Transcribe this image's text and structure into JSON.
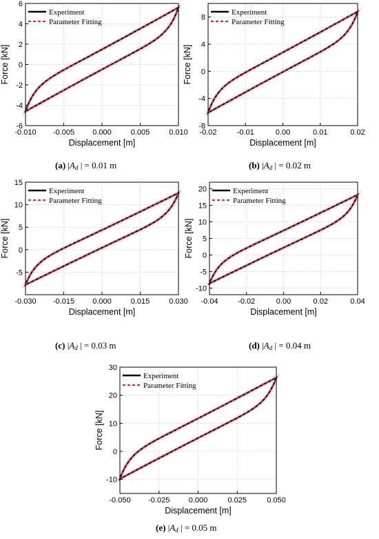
{
  "legend": {
    "experiment": "Experiment",
    "fitting": "Parameter Fitting"
  },
  "colors": {
    "experiment": "#000000",
    "fitting": "#c0392b",
    "grid": "#cfcfcf",
    "glow": "#f4a9c8"
  },
  "chart_data": [
    {
      "id": "a",
      "type": "line",
      "title": "",
      "xlabel": "Displacement [m]",
      "ylabel": "Force [kN]",
      "xlim": [
        -0.01,
        0.01
      ],
      "ylim": [
        -6,
        6
      ],
      "xticks": [
        -0.01,
        -0.005,
        0.0,
        0.005,
        0.01
      ],
      "xtick_labels": [
        "-0.010",
        "-0.005",
        "0.000",
        "0.005",
        "0.010"
      ],
      "yticks": [
        -6,
        -4,
        -2,
        0,
        2,
        4,
        6
      ],
      "ytick_labels": [
        "-6",
        "-4",
        "-2",
        "0",
        "2",
        "4",
        "6"
      ],
      "grid": true,
      "legend_position": "top-left",
      "amplitude": 0.01,
      "force_min": -4.6,
      "force_max": 5.6,
      "series": [
        {
          "name": "Experiment"
        },
        {
          "name": "Parameter Fitting"
        }
      ],
      "caption": {
        "label": "(a)",
        "symbol": "A",
        "subscript": "d",
        "text": "| = 0.01 m"
      }
    },
    {
      "id": "b",
      "type": "line",
      "title": "",
      "xlabel": "Displacement [m]",
      "ylabel": "Force [kN]",
      "xlim": [
        -0.02,
        0.02
      ],
      "ylim": [
        -8,
        10
      ],
      "xticks": [
        -0.02,
        -0.01,
        0.0,
        0.01,
        0.02
      ],
      "xtick_labels": [
        "-0.02",
        "-0.01",
        "0.00",
        "0.01",
        "0.02"
      ],
      "yticks": [
        -8,
        -4,
        0,
        4,
        8
      ],
      "ytick_labels": [
        "-8",
        "-4",
        "0",
        "4",
        "8"
      ],
      "grid": true,
      "legend_position": "top-left",
      "amplitude": 0.02,
      "force_min": -6.1,
      "force_max": 8.8,
      "series": [
        {
          "name": "Experiment"
        },
        {
          "name": "Parameter Fitting"
        }
      ],
      "caption": {
        "label": "(b)",
        "symbol": "A",
        "subscript": "d",
        "text": "| = 0.02 m"
      }
    },
    {
      "id": "c",
      "type": "line",
      "title": "",
      "xlabel": "Displacement [m]",
      "ylabel": "Force [kN]",
      "xlim": [
        -0.03,
        0.03
      ],
      "ylim": [
        -10,
        15
      ],
      "xticks": [
        -0.03,
        -0.015,
        0.0,
        0.015,
        0.03
      ],
      "xtick_labels": [
        "-0.030",
        "-0.015",
        "0.000",
        "0.015",
        "0.030"
      ],
      "yticks": [
        -5,
        0,
        5,
        10,
        15
      ],
      "ytick_labels": [
        "-5",
        "0",
        "5",
        "10",
        "15"
      ],
      "grid": true,
      "legend_position": "top-left",
      "amplitude": 0.03,
      "force_min": -7.8,
      "force_max": 12.6,
      "series": [
        {
          "name": "Experiment"
        },
        {
          "name": "Parameter Fitting"
        }
      ],
      "caption": {
        "label": "(c)",
        "symbol": "A",
        "subscript": "d",
        "text": "| = 0.03 m"
      }
    },
    {
      "id": "d",
      "type": "line",
      "title": "",
      "xlabel": "Displacement [m]",
      "ylabel": "Force [kN]",
      "xlim": [
        -0.04,
        0.04
      ],
      "ylim": [
        -12,
        22
      ],
      "xticks": [
        -0.04,
        -0.02,
        0.0,
        0.02,
        0.04
      ],
      "xtick_labels": [
        "-0.04",
        "-0.02",
        "0.00",
        "0.02",
        "0.04"
      ],
      "yticks": [
        -10,
        -5,
        0,
        5,
        10,
        15,
        20
      ],
      "ytick_labels": [
        "-10",
        "-5",
        "0",
        "5",
        "10",
        "15",
        "20"
      ],
      "grid": true,
      "legend_position": "top-left",
      "amplitude": 0.04,
      "force_min": -8.6,
      "force_max": 18.2,
      "series": [
        {
          "name": "Experiment"
        },
        {
          "name": "Parameter Fitting"
        }
      ],
      "caption": {
        "label": "(d)",
        "symbol": "A",
        "subscript": "d",
        "text": "| = 0.04 m"
      }
    },
    {
      "id": "e",
      "type": "line",
      "title": "",
      "xlabel": "Displacement [m]",
      "ylabel": "Force [kN]",
      "xlim": [
        -0.05,
        0.05
      ],
      "ylim": [
        -15,
        30
      ],
      "xticks": [
        -0.05,
        -0.025,
        0.0,
        0.025,
        0.05
      ],
      "xtick_labels": [
        "-0.050",
        "-0.025",
        "0.000",
        "0.025",
        "0.050"
      ],
      "yticks": [
        -10,
        0,
        10,
        20,
        30
      ],
      "ytick_labels": [
        "-10",
        "0",
        "10",
        "20",
        "30"
      ],
      "grid": true,
      "legend_position": "top-left",
      "amplitude": 0.05,
      "force_min": -9.8,
      "force_max": 26.3,
      "series": [
        {
          "name": "Experiment"
        },
        {
          "name": "Parameter Fitting"
        }
      ],
      "caption": {
        "label": "(e)",
        "symbol": "A",
        "subscript": "d",
        "text": "| = 0.05 m"
      }
    }
  ]
}
